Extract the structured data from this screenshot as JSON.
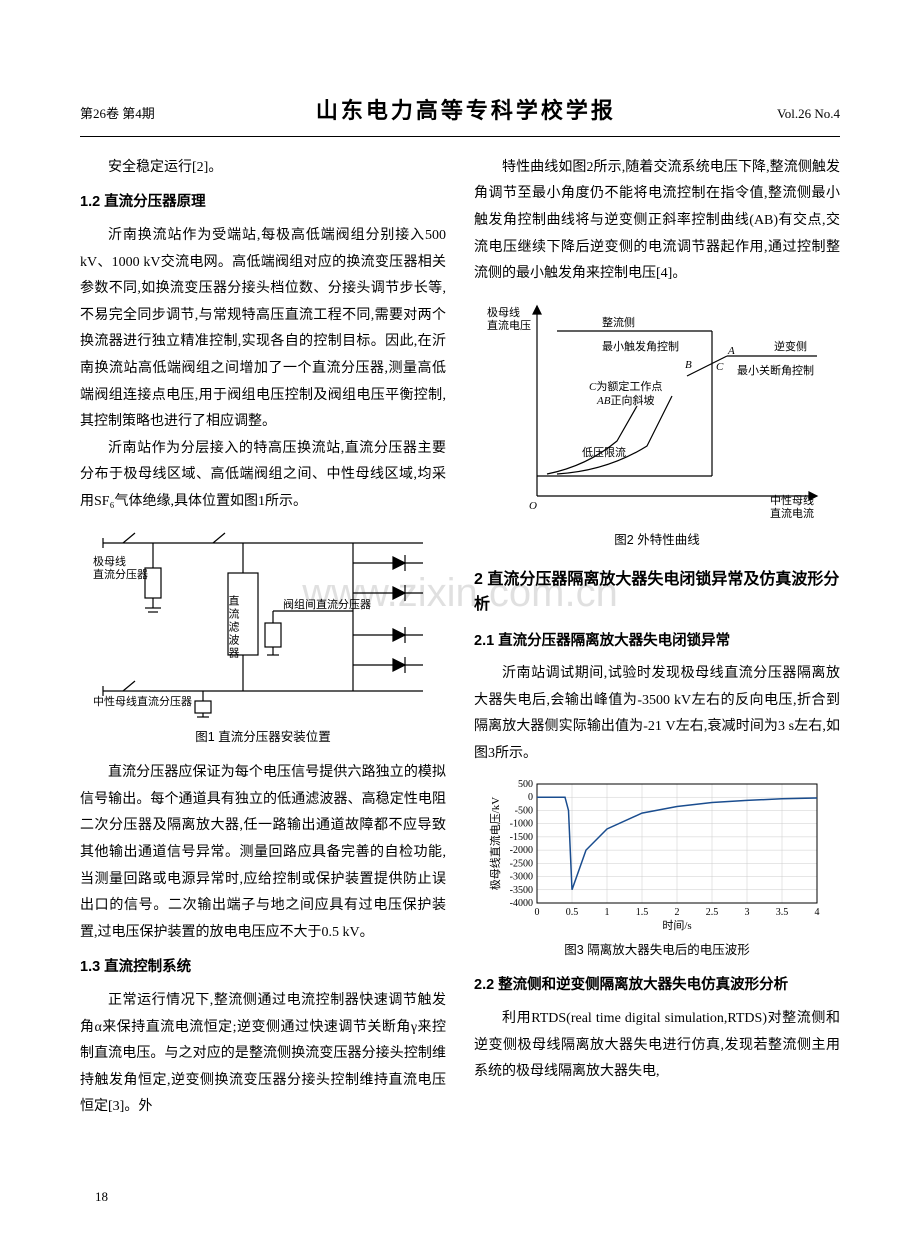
{
  "header": {
    "left": "第26卷 第4期",
    "center": "山东电力高等专科学校学报",
    "right": "Vol.26 No.4"
  },
  "watermark": "www.zixin.com.cn",
  "page_number": "18",
  "col1": {
    "p1": "安全稳定运行[2]。",
    "h1_2": "1.2  直流分压器原理",
    "p2": "沂南换流站作为受端站,每极高低端阀组分别接入500 kV、1000 kV交流电网。高低端阀组对应的换流变压器相关参数不同,如换流变压器分接头档位数、分接头调节步长等,不易完全同步调节,与常规特高压直流工程不同,需要对两个换流器进行独立精准控制,实现各自的控制目标。因此,在沂南换流站高低端阀组之间增加了一个直流分压器,测量高低端阀组连接点电压,用于阀组电压控制及阀组电压平衡控制,其控制策略也进行了相应调整。",
    "p3": "沂南站作为分层接入的特高压换流站,直流分压器主要分布于极母线区域、高低端阀组之间、中性母线区域,均采用SF₆气体绝缘,具体位置如图1所示。",
    "fig1_caption": "图1  直流分压器安装位置",
    "p4": "直流分压器应保证为每个电压信号提供六路独立的模拟信号输出。每个通道具有独立的低通滤波器、高稳定性电阻二次分压器及隔离放大器,任一路输出通道故障都不应导致其他输出通道信号异常。测量回路应具备完善的自检功能,当测量回路或电源异常时,应给控制或保护装置提供防止误出口的信号。二次输出端子与地之间应具有过电压保护装置,过电压保护装置的放电电压应不大于0.5 kV。",
    "h1_3": "1.3  直流控制系统",
    "p5": "正常运行情况下,整流侧通过电流控制器快速调节触发角α来保持直流电流恒定;逆变侧通过快速调节关断角γ来控制直流电压。与之对应的是整流侧换流变压器分接头控制维持触发角恒定,逆变侧换流变压器分接头控制维持直流电压恒定[3]。外"
  },
  "col2": {
    "p1": "特性曲线如图2所示,随着交流系统电压下降,整流侧触发角调节至最小角度仍不能将电流控制在指令值,整流侧最小触发角控制曲线将与逆变侧正斜率控制曲线(AB)有交点,交流电压继续下降后逆变侧的电流调节器起作用,通过控制整流侧的最小触发角来控制电压[4]。",
    "fig2_caption": "图2  外特性曲线",
    "h2": "2  直流分压器隔离放大器失电闭锁异常及仿真波形分析",
    "h2_1": "2.1  直流分压器隔离放大器失电闭锁异常",
    "p2": "沂南站调试期间,试验时发现极母线直流分压器隔离放大器失电后,会输出峰值为-3500 kV左右的反向电压,折合到隔离放大器侧实际输出值为-21 V左右,衰减时间为3 s左右,如图3所示。",
    "fig3_caption": "图3  隔离放大器失电后的电压波形",
    "h2_2": "2.2  整流侧和逆变侧隔离放大器失电仿真波形分析",
    "p3": "利用RTDS(real time digital simulation,RTDS)对整流侧和逆变侧极母线隔离放大器失电进行仿真,发现若整流侧主用系统的极母线隔离放大器失电,"
  },
  "fig1": {
    "type": "circuit-diagram",
    "labels": {
      "busbar": "极母线\n直流分压器",
      "filter": "直流滤波器",
      "valve_div": "阀组间直流分压器",
      "neutral": "中性母线直流分压器"
    },
    "stroke": "#000000",
    "stroke_width": 1.2,
    "fontsize": 11
  },
  "fig2": {
    "type": "line-diagram",
    "labels": {
      "y_axis": "极母线\n直流电压",
      "x_axis": "中性母线\n直流电流",
      "rect_side": "整流侧",
      "min_fire": "最小触发角控制",
      "inv_side": "逆变侧",
      "min_turn": "最小关断角控制",
      "point_a": "A",
      "point_b": "B",
      "point_c": "C",
      "c_note": "C为额定工作点\nAB正向斜坡",
      "low_limit": "低压限流",
      "origin": "O"
    },
    "stroke": "#000000",
    "stroke_width": 1.2,
    "fontsize": 11
  },
  "fig3": {
    "type": "line",
    "x": [
      0,
      0.4,
      0.45,
      0.5,
      0.7,
      1.0,
      1.5,
      2.0,
      2.5,
      3.0,
      3.5,
      4.0
    ],
    "y": [
      0,
      0,
      -500,
      -3500,
      -2000,
      -1200,
      -600,
      -350,
      -200,
      -120,
      -60,
      -30
    ],
    "line_color": "#1a4d8f",
    "line_width": 1.5,
    "xlabel": "时间/s",
    "ylabel": "极母线直流电压/kV",
    "xlim": [
      0,
      4.0
    ],
    "ylim": [
      -4000,
      500
    ],
    "xticks": [
      0,
      0.5,
      1,
      1.5,
      2,
      2.5,
      3,
      3.5,
      4
    ],
    "yticks": [
      500,
      0,
      -500,
      -1000,
      -1500,
      -2000,
      -2500,
      -3000,
      -3500,
      -4000
    ],
    "grid_color": "#cccccc",
    "background": "#ffffff",
    "fontsize": 10
  }
}
